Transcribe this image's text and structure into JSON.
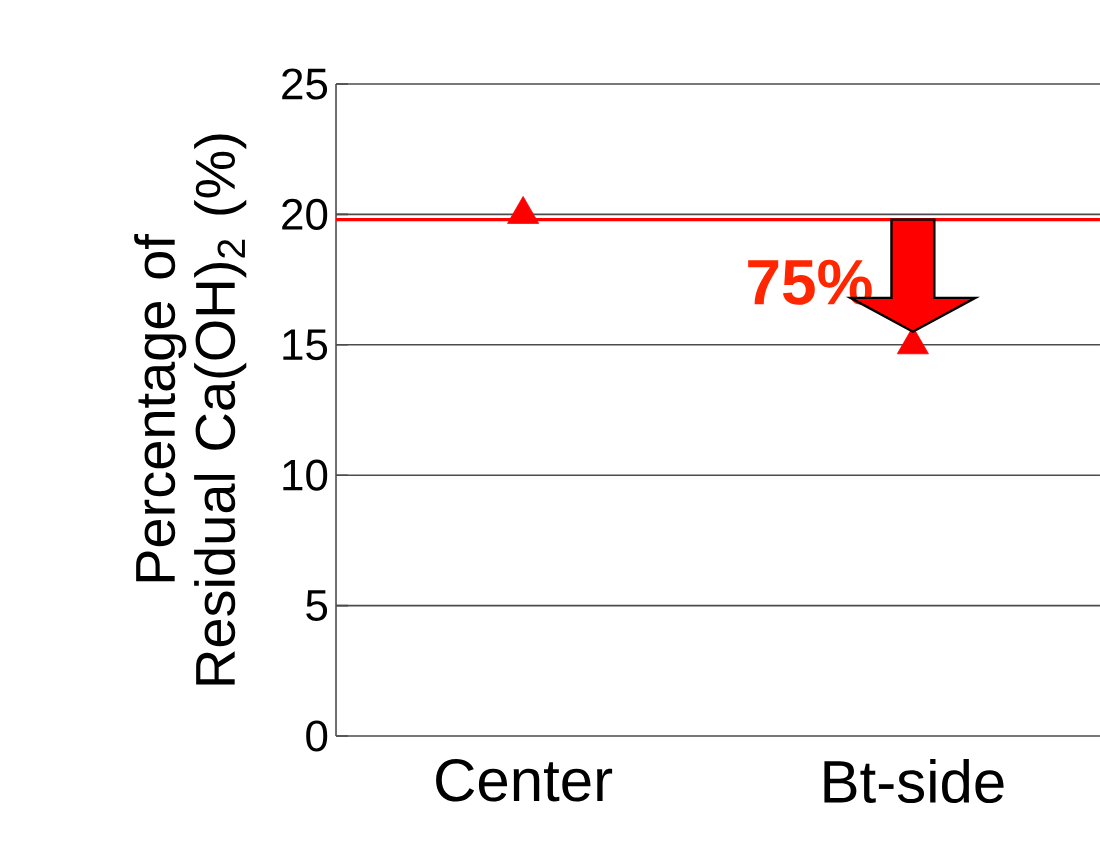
{
  "chart_data": {
    "type": "scatter",
    "ylabel": "Percentage of Residual Ca(OH)$_{2}$  (%)",
    "categories": [
      "Center",
      "Bt-side"
    ],
    "series": [
      {
        "color": "#ff0000",
        "values": [
          20,
          15
        ]
      }
    ],
    "marker": "triangle",
    "ylim": [
      0,
      25
    ],
    "yticks": [
      0,
      5,
      10,
      15,
      20,
      25
    ],
    "grid": "y",
    "ref_lines": [
      {
        "axis": "y",
        "value": 19.8,
        "color": "#ff0000"
      }
    ],
    "annotations": [
      "75%"
    ]
  }
}
